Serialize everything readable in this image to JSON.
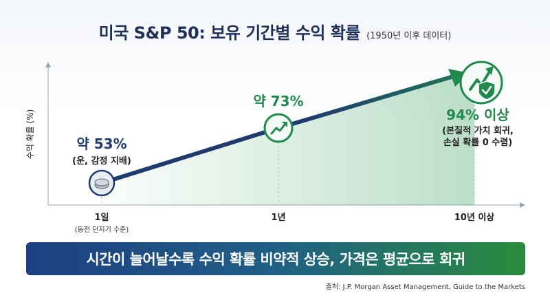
{
  "title": "미국 S&P 50: 보유 기간별 수익 확률",
  "subtitle": "(1950년 이후 데이터)",
  "chart_data": {
    "type": "line",
    "ylabel": "수익 확률 (%)",
    "xlabel": "",
    "categories": [
      "1일",
      "1년",
      "10년 이상"
    ],
    "category_notes": [
      "(동전 던지기 수준)",
      "",
      ""
    ],
    "values": [
      53,
      73,
      94
    ],
    "data_labels": [
      "약 53%",
      "약 73%",
      "94% 이상"
    ],
    "annotations": [
      "(운, 감정 지배)",
      "",
      "(본질적 가치 회귀,\n손실 확률 0 수렴)"
    ],
    "ylim": [
      40,
      100
    ],
    "grid": false,
    "colors": {
      "line": "#1f3a6e",
      "end_arrow": "#1f8a4c",
      "label_blue": "#1f3a6e",
      "label_green": "#1f8a4c",
      "fill": "#2e9a55"
    }
  },
  "icons": [
    "coin-icon",
    "trend-up-icon",
    "shield-check-icon"
  ],
  "banner": "시간이 늘어날수록 수익 확률 비약적 상승, 가격은 평균으로 회귀",
  "source": "출처: J.P. Morgan Asset Management, Guide to the Markets"
}
